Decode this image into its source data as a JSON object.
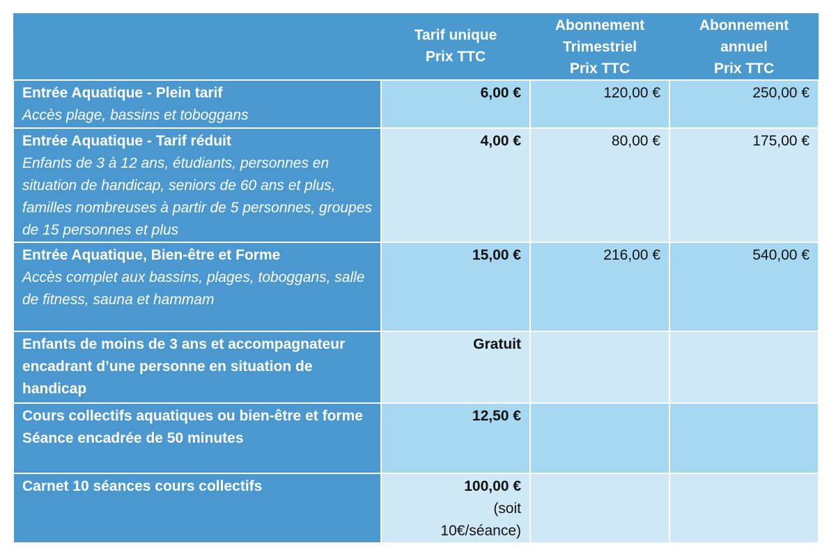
{
  "header": {
    "col1": [
      "Tarif unique",
      "Prix TTC"
    ],
    "col2": [
      "Abonnement",
      "Trimestriel",
      "Prix TTC"
    ],
    "col3": [
      "Abonnement",
      "annuel",
      "Prix TTC"
    ]
  },
  "rows": [
    {
      "title": "Entrée Aquatique -  Plein tarif",
      "desc": "Accès plage, bassins et toboggans",
      "unique": "6,00 €",
      "trim": "120,00 €",
      "annuel": "250,00 €"
    },
    {
      "title": "Entrée Aquatique -  Tarif réduit",
      "desc": "Enfants de 3 à 12 ans, étudiants, personnes en situation de handicap, seniors de 60 ans et plus, familles nombreuses à partir de 5 personnes, groupes de 15 personnes et plus",
      "unique": "4,00 €",
      "trim": "80,00 €",
      "annuel": "175,00 €"
    },
    {
      "title": "Entrée Aquatique, Bien-être et Forme",
      "desc": "Accès complet aux bassins, plages, toboggans, salle de fitness, sauna et hammam",
      "unique": "15,00 €",
      "trim": "216,00 €",
      "annuel": "540,00 €"
    },
    {
      "title": "Enfants de moins de 3 ans et accompagnateur encadrant d’une personne en situation de handicap",
      "unique": "Gratuit"
    },
    {
      "title": "Cours collectifs aquatiques ou bien-être et forme",
      "sub": "Séance encadrée de 50 minutes",
      "unique": "12,50 €"
    },
    {
      "title": "Carnet 10 séances cours collectifs",
      "unique": "100,00 €",
      "unique_note": "(soit 10€/séance)"
    }
  ]
}
